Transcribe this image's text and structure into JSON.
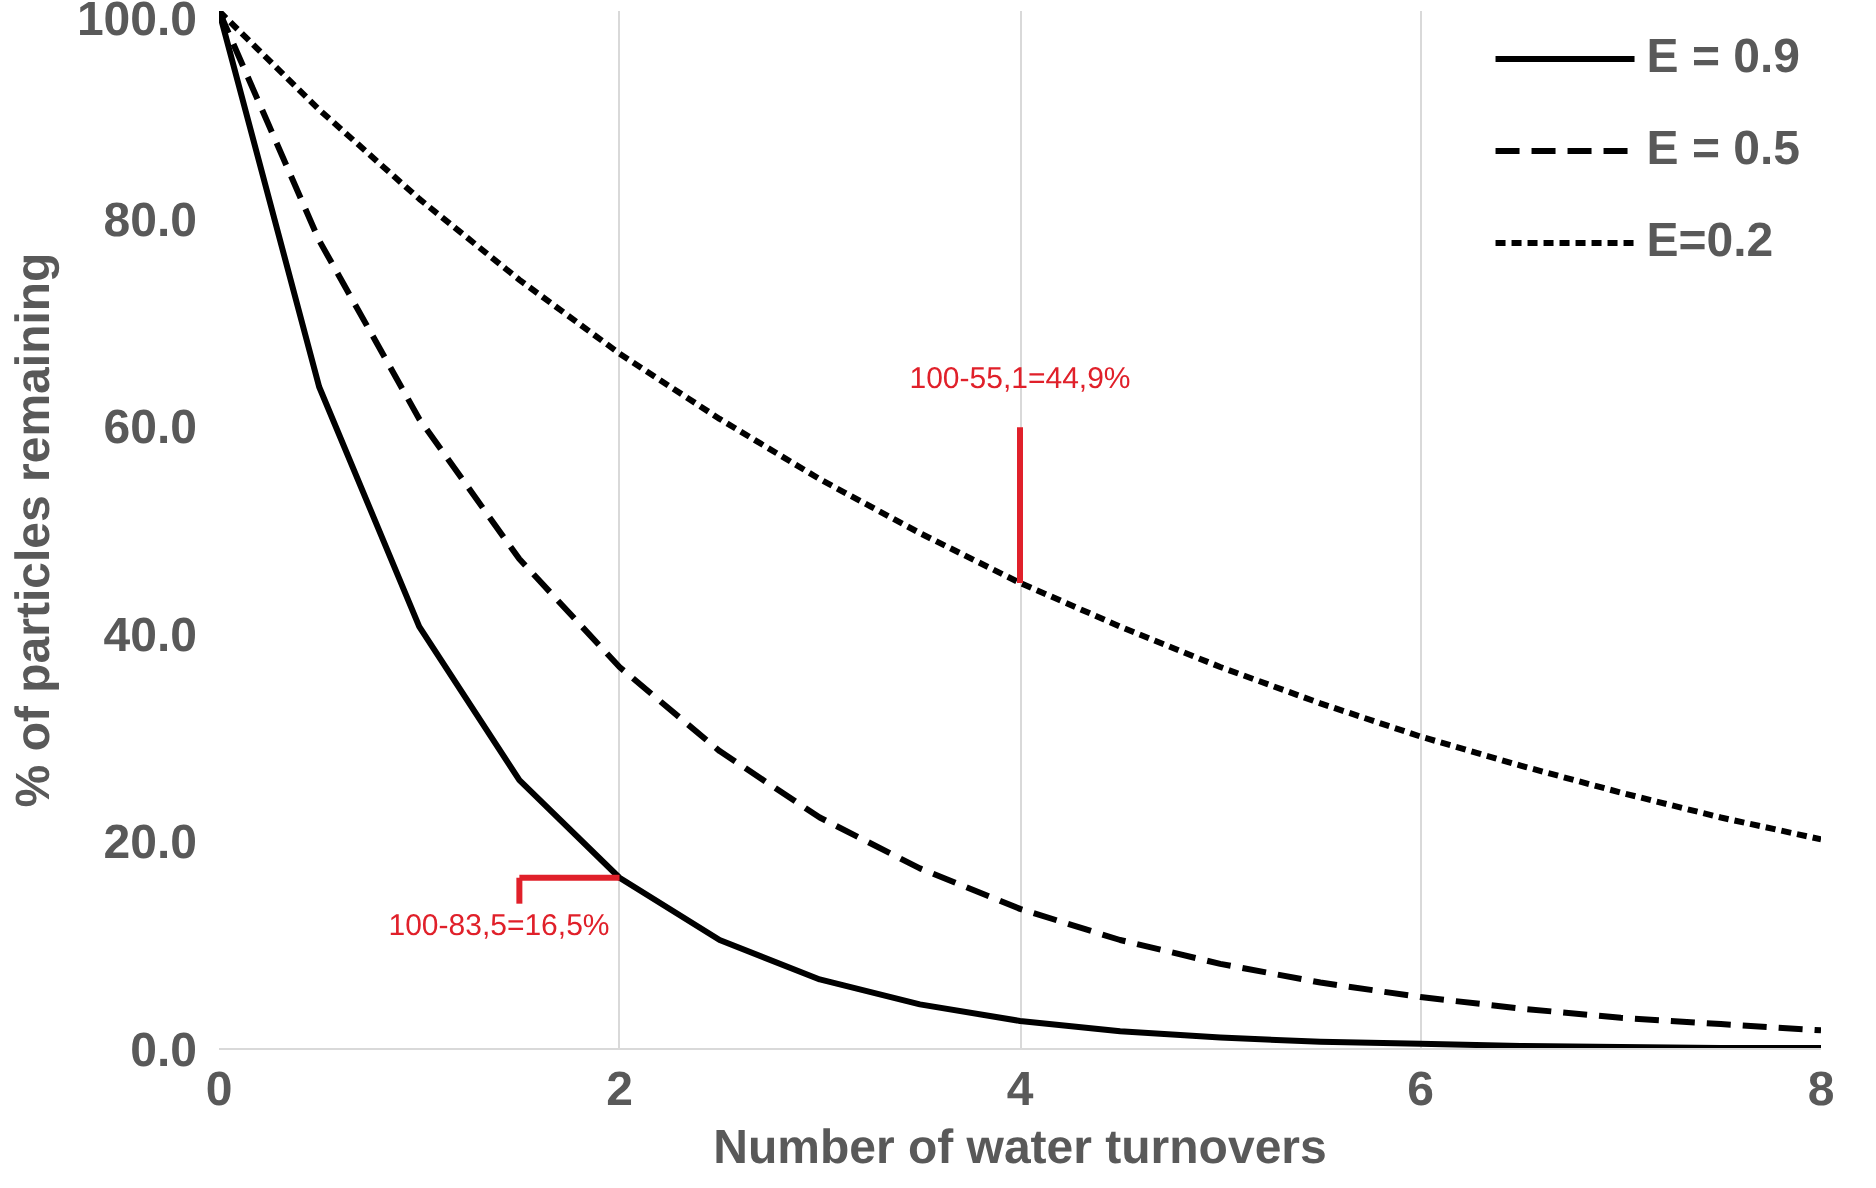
{
  "chart_data": {
    "type": "line",
    "xlabel": "Number of water turnovers",
    "ylabel": "% of particles remaining",
    "x": [
      0,
      0.5,
      1,
      1.5,
      2,
      2.5,
      3,
      3.5,
      4,
      4.5,
      5,
      5.5,
      6,
      6.5,
      7,
      7.5,
      8
    ],
    "series": [
      {
        "name": "E = 0.9",
        "color": "#000000",
        "line_style": "solid",
        "values": [
          100,
          63.8,
          40.7,
          25.9,
          16.5,
          10.5,
          6.7,
          4.3,
          2.7,
          1.7,
          1.1,
          0.7,
          0.5,
          0.3,
          0.2,
          0.1,
          0.1
        ]
      },
      {
        "name": "E = 0.5",
        "color": "#000000",
        "line_style": "dashed",
        "values": [
          100,
          77.9,
          60.7,
          47.2,
          36.8,
          28.7,
          22.3,
          17.4,
          13.5,
          10.5,
          8.2,
          6.4,
          5.0,
          3.9,
          3.0,
          2.4,
          1.8
        ]
      },
      {
        "name": "E=0.2",
        "color": "#000000",
        "line_style": "dotted",
        "values": [
          100,
          90.5,
          81.9,
          74.1,
          67.0,
          60.7,
          54.9,
          49.7,
          44.9,
          40.7,
          36.8,
          33.3,
          30.1,
          27.3,
          24.7,
          22.3,
          20.2
        ]
      }
    ],
    "xlim": [
      0,
      8
    ],
    "xticks": [
      0,
      2,
      4,
      6,
      8
    ],
    "ylim": [
      0,
      100
    ],
    "yticks": [
      {
        "value": 0,
        "label": "0.0"
      },
      {
        "value": 20,
        "label": "20.0"
      },
      {
        "value": 40,
        "label": "40.0"
      },
      {
        "value": 60,
        "label": "60.0"
      },
      {
        "value": 80,
        "label": "80.0"
      },
      {
        "value": 100,
        "label": "100.0"
      }
    ],
    "grid": "x",
    "legend": "top right",
    "marker": "none",
    "annotations": [
      {
        "text": "100-83,5=16,5%",
        "x": 2,
        "y": 16.5
      },
      {
        "text": "100-55,1=44,9%",
        "x": 4,
        "y": 44.9
      }
    ]
  }
}
